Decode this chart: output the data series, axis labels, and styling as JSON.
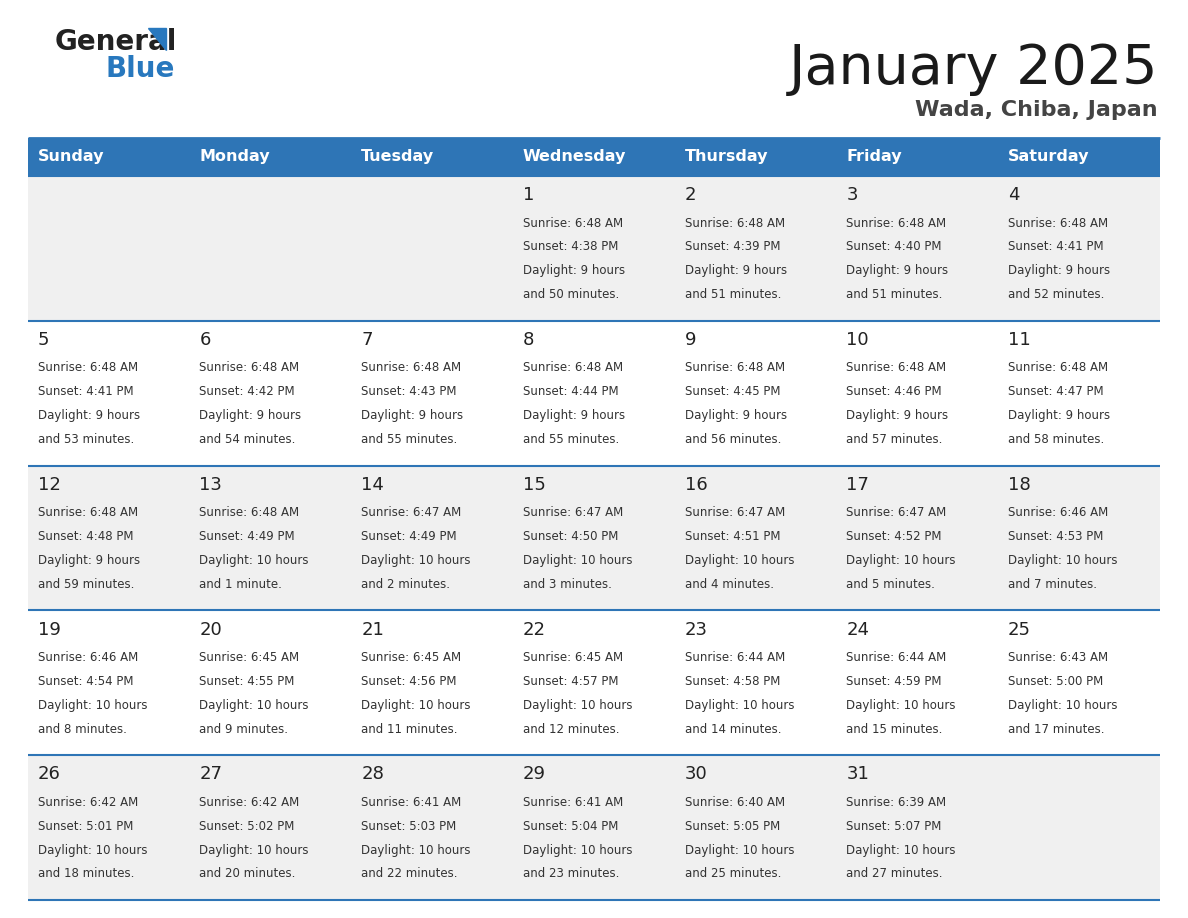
{
  "title": "January 2025",
  "subtitle": "Wada, Chiba, Japan",
  "days_of_week": [
    "Sunday",
    "Monday",
    "Tuesday",
    "Wednesday",
    "Thursday",
    "Friday",
    "Saturday"
  ],
  "header_bg": "#2E75B6",
  "header_text_color": "#FFFFFF",
  "row_bg_odd": "#F0F0F0",
  "row_bg_even": "#FFFFFF",
  "cell_text_color": "#333333",
  "day_num_color": "#222222",
  "row_separator_color": "#2E75B6",
  "calendar_data": [
    {
      "day": 1,
      "col": 3,
      "row": 0,
      "sunrise": "6:48 AM",
      "sunset": "4:38 PM",
      "daylight_line1": "Daylight: 9 hours",
      "daylight_line2": "and 50 minutes."
    },
    {
      "day": 2,
      "col": 4,
      "row": 0,
      "sunrise": "6:48 AM",
      "sunset": "4:39 PM",
      "daylight_line1": "Daylight: 9 hours",
      "daylight_line2": "and 51 minutes."
    },
    {
      "day": 3,
      "col": 5,
      "row": 0,
      "sunrise": "6:48 AM",
      "sunset": "4:40 PM",
      "daylight_line1": "Daylight: 9 hours",
      "daylight_line2": "and 51 minutes."
    },
    {
      "day": 4,
      "col": 6,
      "row": 0,
      "sunrise": "6:48 AM",
      "sunset": "4:41 PM",
      "daylight_line1": "Daylight: 9 hours",
      "daylight_line2": "and 52 minutes."
    },
    {
      "day": 5,
      "col": 0,
      "row": 1,
      "sunrise": "6:48 AM",
      "sunset": "4:41 PM",
      "daylight_line1": "Daylight: 9 hours",
      "daylight_line2": "and 53 minutes."
    },
    {
      "day": 6,
      "col": 1,
      "row": 1,
      "sunrise": "6:48 AM",
      "sunset": "4:42 PM",
      "daylight_line1": "Daylight: 9 hours",
      "daylight_line2": "and 54 minutes."
    },
    {
      "day": 7,
      "col": 2,
      "row": 1,
      "sunrise": "6:48 AM",
      "sunset": "4:43 PM",
      "daylight_line1": "Daylight: 9 hours",
      "daylight_line2": "and 55 minutes."
    },
    {
      "day": 8,
      "col": 3,
      "row": 1,
      "sunrise": "6:48 AM",
      "sunset": "4:44 PM",
      "daylight_line1": "Daylight: 9 hours",
      "daylight_line2": "and 55 minutes."
    },
    {
      "day": 9,
      "col": 4,
      "row": 1,
      "sunrise": "6:48 AM",
      "sunset": "4:45 PM",
      "daylight_line1": "Daylight: 9 hours",
      "daylight_line2": "and 56 minutes."
    },
    {
      "day": 10,
      "col": 5,
      "row": 1,
      "sunrise": "6:48 AM",
      "sunset": "4:46 PM",
      "daylight_line1": "Daylight: 9 hours",
      "daylight_line2": "and 57 minutes."
    },
    {
      "day": 11,
      "col": 6,
      "row": 1,
      "sunrise": "6:48 AM",
      "sunset": "4:47 PM",
      "daylight_line1": "Daylight: 9 hours",
      "daylight_line2": "and 58 minutes."
    },
    {
      "day": 12,
      "col": 0,
      "row": 2,
      "sunrise": "6:48 AM",
      "sunset": "4:48 PM",
      "daylight_line1": "Daylight: 9 hours",
      "daylight_line2": "and 59 minutes."
    },
    {
      "day": 13,
      "col": 1,
      "row": 2,
      "sunrise": "6:48 AM",
      "sunset": "4:49 PM",
      "daylight_line1": "Daylight: 10 hours",
      "daylight_line2": "and 1 minute."
    },
    {
      "day": 14,
      "col": 2,
      "row": 2,
      "sunrise": "6:47 AM",
      "sunset": "4:49 PM",
      "daylight_line1": "Daylight: 10 hours",
      "daylight_line2": "and 2 minutes."
    },
    {
      "day": 15,
      "col": 3,
      "row": 2,
      "sunrise": "6:47 AM",
      "sunset": "4:50 PM",
      "daylight_line1": "Daylight: 10 hours",
      "daylight_line2": "and 3 minutes."
    },
    {
      "day": 16,
      "col": 4,
      "row": 2,
      "sunrise": "6:47 AM",
      "sunset": "4:51 PM",
      "daylight_line1": "Daylight: 10 hours",
      "daylight_line2": "and 4 minutes."
    },
    {
      "day": 17,
      "col": 5,
      "row": 2,
      "sunrise": "6:47 AM",
      "sunset": "4:52 PM",
      "daylight_line1": "Daylight: 10 hours",
      "daylight_line2": "and 5 minutes."
    },
    {
      "day": 18,
      "col": 6,
      "row": 2,
      "sunrise": "6:46 AM",
      "sunset": "4:53 PM",
      "daylight_line1": "Daylight: 10 hours",
      "daylight_line2": "and 7 minutes."
    },
    {
      "day": 19,
      "col": 0,
      "row": 3,
      "sunrise": "6:46 AM",
      "sunset": "4:54 PM",
      "daylight_line1": "Daylight: 10 hours",
      "daylight_line2": "and 8 minutes."
    },
    {
      "day": 20,
      "col": 1,
      "row": 3,
      "sunrise": "6:45 AM",
      "sunset": "4:55 PM",
      "daylight_line1": "Daylight: 10 hours",
      "daylight_line2": "and 9 minutes."
    },
    {
      "day": 21,
      "col": 2,
      "row": 3,
      "sunrise": "6:45 AM",
      "sunset": "4:56 PM",
      "daylight_line1": "Daylight: 10 hours",
      "daylight_line2": "and 11 minutes."
    },
    {
      "day": 22,
      "col": 3,
      "row": 3,
      "sunrise": "6:45 AM",
      "sunset": "4:57 PM",
      "daylight_line1": "Daylight: 10 hours",
      "daylight_line2": "and 12 minutes."
    },
    {
      "day": 23,
      "col": 4,
      "row": 3,
      "sunrise": "6:44 AM",
      "sunset": "4:58 PM",
      "daylight_line1": "Daylight: 10 hours",
      "daylight_line2": "and 14 minutes."
    },
    {
      "day": 24,
      "col": 5,
      "row": 3,
      "sunrise": "6:44 AM",
      "sunset": "4:59 PM",
      "daylight_line1": "Daylight: 10 hours",
      "daylight_line2": "and 15 minutes."
    },
    {
      "day": 25,
      "col": 6,
      "row": 3,
      "sunrise": "6:43 AM",
      "sunset": "5:00 PM",
      "daylight_line1": "Daylight: 10 hours",
      "daylight_line2": "and 17 minutes."
    },
    {
      "day": 26,
      "col": 0,
      "row": 4,
      "sunrise": "6:42 AM",
      "sunset": "5:01 PM",
      "daylight_line1": "Daylight: 10 hours",
      "daylight_line2": "and 18 minutes."
    },
    {
      "day": 27,
      "col": 1,
      "row": 4,
      "sunrise": "6:42 AM",
      "sunset": "5:02 PM",
      "daylight_line1": "Daylight: 10 hours",
      "daylight_line2": "and 20 minutes."
    },
    {
      "day": 28,
      "col": 2,
      "row": 4,
      "sunrise": "6:41 AM",
      "sunset": "5:03 PM",
      "daylight_line1": "Daylight: 10 hours",
      "daylight_line2": "and 22 minutes."
    },
    {
      "day": 29,
      "col": 3,
      "row": 4,
      "sunrise": "6:41 AM",
      "sunset": "5:04 PM",
      "daylight_line1": "Daylight: 10 hours",
      "daylight_line2": "and 23 minutes."
    },
    {
      "day": 30,
      "col": 4,
      "row": 4,
      "sunrise": "6:40 AM",
      "sunset": "5:05 PM",
      "daylight_line1": "Daylight: 10 hours",
      "daylight_line2": "and 25 minutes."
    },
    {
      "day": 31,
      "col": 5,
      "row": 4,
      "sunrise": "6:39 AM",
      "sunset": "5:07 PM",
      "daylight_line1": "Daylight: 10 hours",
      "daylight_line2": "and 27 minutes."
    }
  ]
}
